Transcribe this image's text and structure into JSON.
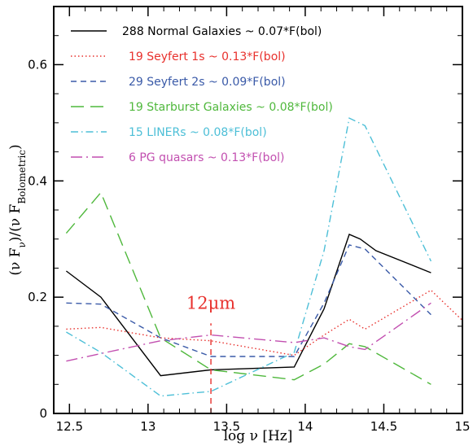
{
  "chart_data": {
    "type": "line",
    "xlabel": "log ν [Hz]",
    "ylabel": "(ν F_ν)/(ν F_Bolometric)",
    "xlim": [
      12.4,
      15.0
    ],
    "ylim": [
      0.0,
      0.7
    ],
    "x_ticks": [
      "12.5",
      "13",
      "13.5",
      "14",
      "14.5",
      "15"
    ],
    "x_tick_values": [
      12.5,
      13.0,
      13.5,
      14.0,
      14.5,
      15.0
    ],
    "y_ticks": [
      "0",
      "0.2",
      "0.4",
      "0.6"
    ],
    "y_tick_values": [
      0.0,
      0.2,
      0.4,
      0.6
    ],
    "grid": false,
    "legend_position": "top-left",
    "annotation": {
      "text": "12μm",
      "x": 13.4,
      "color": "#e8312d",
      "line_ymin": 0.0,
      "line_ymax": 0.155
    },
    "series": [
      {
        "name": "288 Normal Galaxies ~ 0.07*F(bol)",
        "color": "#000000",
        "dash": "",
        "x": [
          12.48,
          12.7,
          13.08,
          13.4,
          13.93,
          14.12,
          14.28,
          14.35,
          14.45,
          14.8
        ],
        "y": [
          0.245,
          0.2,
          0.065,
          0.075,
          0.08,
          0.18,
          0.308,
          0.3,
          0.28,
          0.242
        ]
      },
      {
        "name": "19 Seyfert 1s ~ 0.13*F(bol)",
        "color": "#e8312d",
        "dash": "1.5,3",
        "x": [
          12.48,
          12.7,
          13.08,
          13.4,
          13.93,
          14.12,
          14.28,
          14.38,
          14.8,
          15.0
        ],
        "y": [
          0.145,
          0.148,
          0.13,
          0.125,
          0.1,
          0.135,
          0.162,
          0.145,
          0.212,
          0.16
        ]
      },
      {
        "name": "29 Seyfert 2s ~ 0.09*F(bol)",
        "color": "#3a5aa8",
        "dash": "7,5",
        "x": [
          12.48,
          12.7,
          13.08,
          13.4,
          13.93,
          14.12,
          14.28,
          14.38,
          14.8
        ],
        "y": [
          0.19,
          0.188,
          0.13,
          0.098,
          0.098,
          0.19,
          0.29,
          0.283,
          0.17
        ]
      },
      {
        "name": "19 Starburst Galaxies ~ 0.08*F(bol)",
        "color": "#4fb83c",
        "dash": "16,8",
        "x": [
          12.48,
          12.7,
          13.08,
          13.4,
          13.93,
          14.12,
          14.28,
          14.38,
          14.8
        ],
        "y": [
          0.31,
          0.38,
          0.13,
          0.075,
          0.058,
          0.085,
          0.12,
          0.115,
          0.05
        ]
      },
      {
        "name": "15 LINERs ~ 0.08*F(bol)",
        "color": "#4dbfd7",
        "dash": "9,4,1.5,4",
        "x": [
          12.48,
          12.7,
          13.08,
          13.4,
          13.93,
          14.12,
          14.28,
          14.38,
          14.8
        ],
        "y": [
          0.14,
          0.105,
          0.03,
          0.038,
          0.105,
          0.28,
          0.508,
          0.495,
          0.262
        ]
      },
      {
        "name": "6 PG quasars ~ 0.13*F(bol)",
        "color": "#c24fb0",
        "dash": "14,5,2,5",
        "x": [
          12.48,
          12.7,
          13.08,
          13.4,
          13.93,
          14.12,
          14.28,
          14.38,
          14.8
        ],
        "y": [
          0.09,
          0.103,
          0.125,
          0.135,
          0.122,
          0.13,
          0.115,
          0.11,
          0.19
        ]
      }
    ],
    "legend_labels": [
      "288 Normal Galaxies ~ 0.07*F(bol)",
      "19 Seyfert 1s ~ 0.13*F(bol)",
      "29 Seyfert 2s ~ 0.09*F(bol)",
      "19 Starburst Galaxies ~ 0.08*F(bol)",
      "15 LINERs  ~ 0.08*F(bol)",
      "6 PG quasars ~ 0.13*F(bol)"
    ]
  }
}
